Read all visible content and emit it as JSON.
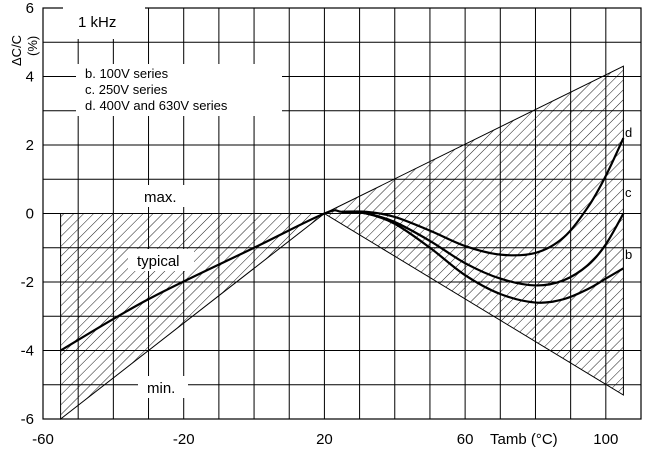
{
  "chart_data": {
    "type": "line",
    "title": "",
    "condition_label": "1 kHz",
    "ylabel": "ΔC/C\n(%)",
    "xlabel": "Tamb (°C)",
    "xlim": [
      -60,
      110
    ],
    "ylim": [
      -6,
      6
    ],
    "x_ticks": [
      -60,
      -20,
      20,
      60,
      100
    ],
    "y_ticks": [
      -6,
      -4,
      -2,
      0,
      2,
      4,
      6
    ],
    "x_grid_step": 10,
    "y_grid_step": 1,
    "grid": true,
    "legend_lines": [
      "b. 100V series",
      "c. 250V series",
      "d. 400V and 630V series"
    ],
    "annotations": {
      "max": "max.",
      "typical": "typical",
      "min": "min."
    },
    "hatched_regions": [
      {
        "name": "tolerance-left",
        "points": [
          [
            -55,
            0
          ],
          [
            20,
            0
          ],
          [
            -55,
            -6
          ]
        ]
      },
      {
        "name": "tolerance-right",
        "points": [
          [
            20,
            0
          ],
          [
            105,
            4.3
          ],
          [
            105,
            -5.3
          ]
        ]
      }
    ],
    "series": [
      {
        "name": "b",
        "end_label": "b",
        "x": [
          -55,
          -30,
          0,
          20,
          25,
          32,
          40,
          50,
          60,
          70,
          80,
          88,
          95,
          100,
          105
        ],
        "y": [
          -4.0,
          -2.5,
          -1.0,
          0.0,
          0.05,
          0.0,
          -0.3,
          -1.0,
          -1.8,
          -2.35,
          -2.6,
          -2.5,
          -2.2,
          -1.9,
          -1.6
        ]
      },
      {
        "name": "c",
        "end_label": "c",
        "x": [
          25,
          32,
          40,
          50,
          60,
          70,
          80,
          88,
          95,
          100,
          105
        ],
        "y": [
          0.05,
          0.0,
          -0.25,
          -0.8,
          -1.45,
          -1.9,
          -2.1,
          -1.95,
          -1.5,
          -0.9,
          0.0
        ]
      },
      {
        "name": "d",
        "end_label": "d",
        "x": [
          25,
          32,
          40,
          50,
          60,
          70,
          80,
          88,
          95,
          100,
          105
        ],
        "y": [
          0.05,
          0.05,
          -0.1,
          -0.5,
          -0.95,
          -1.2,
          -1.15,
          -0.7,
          0.2,
          1.1,
          2.2
        ]
      }
    ]
  }
}
